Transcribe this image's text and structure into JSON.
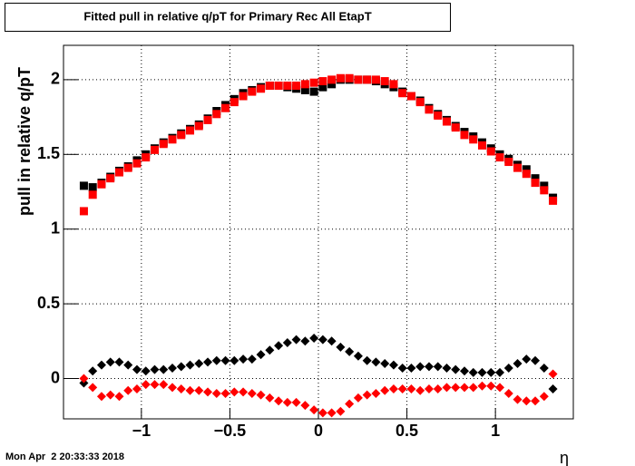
{
  "chart_data": {
    "type": "scatter",
    "title": "Fitted pull in relative q/pT for Primary Rec All EtapT",
    "y_label": "pull in relative q/pT",
    "x_label": "η",
    "timestamp": "Mon Apr  2 20:33:33 2018",
    "xlim": [
      -1.44,
      1.44
    ],
    "ylim": [
      -0.27,
      2.23
    ],
    "xticks": [
      {
        "value": -1,
        "label": "−1"
      },
      {
        "value": -0.5,
        "label": "−0.5"
      },
      0,
      0.5,
      1
    ],
    "yticks": [
      0,
      0.5,
      1,
      1.5,
      2
    ],
    "grid": true,
    "x": [
      -1.325,
      -1.275,
      -1.225,
      -1.175,
      -1.125,
      -1.075,
      -1.025,
      -0.975,
      -0.925,
      -0.875,
      -0.825,
      -0.775,
      -0.725,
      -0.675,
      -0.625,
      -0.575,
      -0.525,
      -0.475,
      -0.425,
      -0.375,
      -0.325,
      -0.275,
      -0.225,
      -0.175,
      -0.125,
      -0.075,
      -0.025,
      0.025,
      0.075,
      0.125,
      0.175,
      0.225,
      0.275,
      0.325,
      0.375,
      0.425,
      0.475,
      0.525,
      0.575,
      0.625,
      0.675,
      0.725,
      0.775,
      0.825,
      0.875,
      0.925,
      0.975,
      1.025,
      1.075,
      1.125,
      1.175,
      1.225,
      1.275,
      1.325
    ],
    "series": [
      {
        "color": "#000000",
        "marker": "square",
        "values": [
          1.29,
          1.28,
          1.31,
          1.35,
          1.39,
          1.42,
          1.46,
          1.5,
          1.54,
          1.58,
          1.61,
          1.64,
          1.67,
          1.7,
          1.74,
          1.79,
          1.83,
          1.87,
          1.91,
          1.93,
          1.95,
          1.96,
          1.96,
          1.95,
          1.94,
          1.93,
          1.92,
          1.95,
          1.97,
          2.0,
          2.0,
          2.0,
          2.0,
          1.99,
          1.97,
          1.95,
          1.92,
          1.89,
          1.86,
          1.81,
          1.77,
          1.73,
          1.69,
          1.65,
          1.62,
          1.58,
          1.54,
          1.5,
          1.47,
          1.43,
          1.4,
          1.34,
          1.29,
          1.21
        ]
      },
      {
        "color": "#ff0000",
        "marker": "square",
        "values": [
          1.12,
          1.23,
          1.3,
          1.34,
          1.38,
          1.41,
          1.44,
          1.48,
          1.53,
          1.57,
          1.6,
          1.63,
          1.66,
          1.69,
          1.73,
          1.77,
          1.81,
          1.85,
          1.89,
          1.92,
          1.94,
          1.96,
          1.96,
          1.96,
          1.96,
          1.97,
          1.98,
          1.99,
          2.0,
          2.01,
          2.01,
          2.0,
          2.0,
          2.0,
          1.99,
          1.97,
          1.91,
          1.89,
          1.85,
          1.8,
          1.76,
          1.72,
          1.68,
          1.63,
          1.6,
          1.56,
          1.52,
          1.48,
          1.45,
          1.41,
          1.37,
          1.31,
          1.26,
          1.19
        ]
      },
      {
        "color": "#000000",
        "marker": "diamond",
        "values": [
          -0.03,
          0.05,
          0.09,
          0.11,
          0.11,
          0.09,
          0.06,
          0.05,
          0.06,
          0.06,
          0.07,
          0.08,
          0.09,
          0.1,
          0.11,
          0.12,
          0.12,
          0.12,
          0.13,
          0.13,
          0.16,
          0.19,
          0.22,
          0.24,
          0.26,
          0.25,
          0.27,
          0.26,
          0.25,
          0.21,
          0.18,
          0.15,
          0.12,
          0.11,
          0.1,
          0.09,
          0.07,
          0.07,
          0.08,
          0.08,
          0.08,
          0.07,
          0.06,
          0.05,
          0.04,
          0.04,
          0.04,
          0.04,
          0.07,
          0.1,
          0.13,
          0.12,
          0.07,
          -0.07
        ]
      },
      {
        "color": "#ff0000",
        "marker": "diamond",
        "values": [
          0.0,
          -0.06,
          -0.12,
          -0.11,
          -0.12,
          -0.08,
          -0.07,
          -0.04,
          -0.04,
          -0.04,
          -0.06,
          -0.07,
          -0.08,
          -0.08,
          -0.09,
          -0.1,
          -0.1,
          -0.09,
          -0.09,
          -0.1,
          -0.11,
          -0.13,
          -0.15,
          -0.16,
          -0.16,
          -0.18,
          -0.21,
          -0.23,
          -0.23,
          -0.22,
          -0.17,
          -0.13,
          -0.11,
          -0.1,
          -0.08,
          -0.07,
          -0.07,
          -0.07,
          -0.08,
          -0.07,
          -0.07,
          -0.06,
          -0.06,
          -0.06,
          -0.06,
          -0.05,
          -0.05,
          -0.06,
          -0.1,
          -0.14,
          -0.15,
          -0.15,
          -0.12,
          0.03
        ]
      }
    ]
  }
}
